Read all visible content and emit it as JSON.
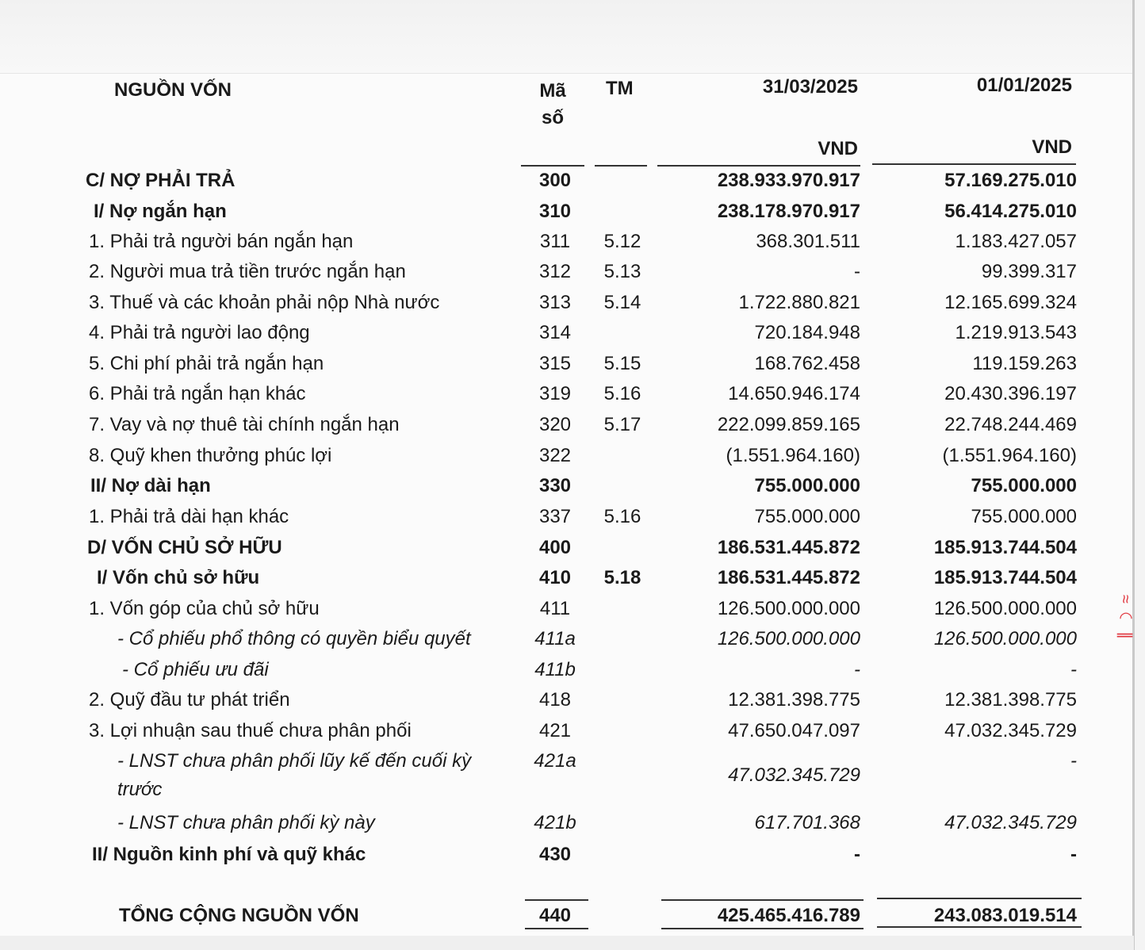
{
  "header": {
    "section_title": "NGUỒN VỐN",
    "code_label": "Mã số",
    "note_label": "TM",
    "period_current": "31/03/2025",
    "period_prior": "01/01/2025",
    "currency_current": "VND",
    "currency_prior": "VND"
  },
  "rows": [
    {
      "label": "C/ NỢ PHẢI TRẢ",
      "code": "300",
      "note": "",
      "current": "238.933.970.917",
      "prior": "57.169.275.010",
      "style": "bold"
    },
    {
      "label": "I/ Nợ ngắn hạn",
      "code": "310",
      "note": "",
      "current": "238.178.970.917",
      "prior": "56.414.275.010",
      "style": "bold"
    },
    {
      "label": "1. Phải trả người bán ngắn hạn",
      "code": "311",
      "note": "5.12",
      "current": "368.301.511",
      "prior": "1.183.427.057",
      "style": "normal"
    },
    {
      "label": "2. Người mua trả tiền trước ngắn hạn",
      "code": "312",
      "note": "5.13",
      "current": "-",
      "prior": "99.399.317",
      "style": "normal"
    },
    {
      "label": "3. Thuế và các khoản phải nộp Nhà nước",
      "code": "313",
      "note": "5.14",
      "current": "1.722.880.821",
      "prior": "12.165.699.324",
      "style": "normal"
    },
    {
      "label": "4. Phải trả người lao động",
      "code": "314",
      "note": "",
      "current": "720.184.948",
      "prior": "1.219.913.543",
      "style": "normal"
    },
    {
      "label": "5. Chi phí phải trả ngắn hạn",
      "code": "315",
      "note": "5.15",
      "current": "168.762.458",
      "prior": "119.159.263",
      "style": "normal"
    },
    {
      "label": "6. Phải trả ngắn hạn khác",
      "code": "319",
      "note": "5.16",
      "current": "14.650.946.174",
      "prior": "20.430.396.197",
      "style": "normal"
    },
    {
      "label": "7. Vay và nợ thuê tài chính ngắn hạn",
      "code": "320",
      "note": "5.17",
      "current": "222.099.859.165",
      "prior": "22.748.244.469",
      "style": "normal"
    },
    {
      "label": "8. Quỹ khen thưởng phúc lợi",
      "code": "322",
      "note": "",
      "current": "(1.551.964.160)",
      "prior": "(1.551.964.160)",
      "style": "normal"
    },
    {
      "label": "II/ Nợ dài hạn",
      "code": "330",
      "note": "",
      "current": "755.000.000",
      "prior": "755.000.000",
      "style": "bold"
    },
    {
      "label": "1. Phải trả dài hạn khác",
      "code": "337",
      "note": "5.16",
      "current": "755.000.000",
      "prior": "755.000.000",
      "style": "normal"
    },
    {
      "label": "D/ VỐN CHỦ SỞ HỮU",
      "code": "400",
      "note": "",
      "current": "186.531.445.872",
      "prior": "185.913.744.504",
      "style": "bold"
    },
    {
      "label": "I/ Vốn chủ sở hữu",
      "code": "410",
      "note": "5.18",
      "current": "186.531.445.872",
      "prior": "185.913.744.504",
      "style": "bold"
    },
    {
      "label": "1. Vốn góp của chủ sở hữu",
      "code": "411",
      "note": "",
      "current": "126.500.000.000",
      "prior": "126.500.000.000",
      "style": "normal"
    },
    {
      "label": "- Cổ phiếu phổ thông có quyền biểu quyết",
      "code": "411a",
      "note": "",
      "current": "126.500.000.000",
      "prior": "126.500.000.000",
      "style": "italic"
    },
    {
      "label": "- Cổ phiếu ưu đãi",
      "code": "411b",
      "note": "",
      "current": "-",
      "prior": "-",
      "style": "italic"
    },
    {
      "label": "2. Quỹ đầu tư phát triển",
      "code": "418",
      "note": "",
      "current": "12.381.398.775",
      "prior": "12.381.398.775",
      "style": "normal"
    },
    {
      "label": "3. Lợi nhuận sau thuế chưa phân phối",
      "code": "421",
      "note": "",
      "current": "47.650.047.097",
      "prior": "47.032.345.729",
      "style": "normal"
    },
    {
      "label": "- LNST chưa phân phối lũy kế đến cuối kỳ",
      "label2": "trước",
      "code": "421a",
      "note": "",
      "current": "47.032.345.729",
      "prior": "-",
      "style": "italic"
    },
    {
      "label": "- LNST chưa phân phối kỳ này",
      "code": "421b",
      "note": "",
      "current": "617.701.368",
      "prior": "47.032.345.729",
      "style": "italic"
    },
    {
      "label": "II/ Nguồn kinh phí và quỹ khác",
      "code": "430",
      "note": "",
      "current": "-",
      "prior": "-",
      "style": "bold"
    },
    {
      "label": "TỔNG CỘNG NGUỒN VỐN",
      "code": "440",
      "note": "",
      "current": "425.465.416.789",
      "prior": "243.083.019.514",
      "style": "total"
    }
  ]
}
